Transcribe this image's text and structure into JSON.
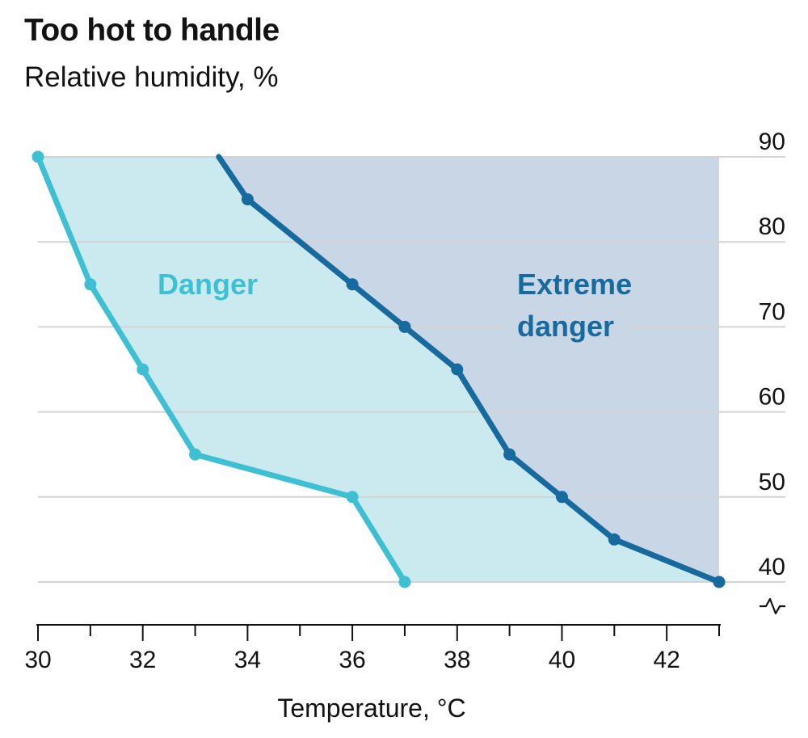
{
  "chart_data": {
    "type": "area",
    "title": "Too hot to handle",
    "subtitle": "Relative humidity, %",
    "xlabel": "Temperature, °C",
    "ylabel": "Relative humidity, %",
    "xlim": [
      30,
      43
    ],
    "ylim": [
      40,
      90
    ],
    "y_axis_break_below": 40,
    "x_ticks": [
      30,
      31,
      32,
      33,
      34,
      35,
      36,
      37,
      38,
      39,
      40,
      41,
      42,
      43
    ],
    "x_tick_labels": [
      30,
      32,
      34,
      36,
      38,
      40,
      42
    ],
    "y_ticks": [
      40,
      50,
      60,
      70,
      80,
      90
    ],
    "y_tick_labels": [
      "40",
      "50",
      "60",
      "70",
      "80",
      "90"
    ],
    "grid": true,
    "y_axis_position": "right",
    "series": [
      {
        "name": "Danger",
        "label_lines": [
          "Danger"
        ],
        "color": "#3ec0d2",
        "fill": "#cbeaf0",
        "points": [
          {
            "x": 30,
            "y": 90
          },
          {
            "x": 31,
            "y": 75
          },
          {
            "x": 32,
            "y": 65
          },
          {
            "x": 33,
            "y": 55
          },
          {
            "x": 36,
            "y": 50
          },
          {
            "x": 37,
            "y": 40
          }
        ]
      },
      {
        "name": "Extreme danger",
        "label_lines": [
          "Extreme",
          "danger"
        ],
        "color": "#176a9e",
        "fill": "#c9d6e6",
        "line_start": {
          "x": 33.45,
          "y": 90
        },
        "points": [
          {
            "x": 34,
            "y": 85
          },
          {
            "x": 36,
            "y": 75
          },
          {
            "x": 37,
            "y": 70
          },
          {
            "x": 38,
            "y": 65
          },
          {
            "x": 39,
            "y": 55
          },
          {
            "x": 40,
            "y": 50
          },
          {
            "x": 41,
            "y": 45
          },
          {
            "x": 43,
            "y": 40
          }
        ]
      }
    ]
  }
}
